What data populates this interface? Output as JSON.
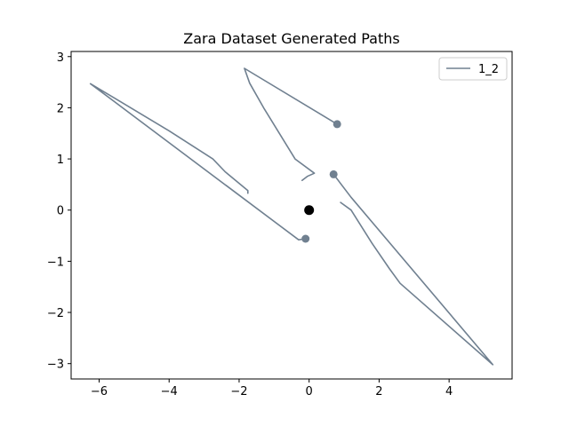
{
  "chart_data": {
    "type": "line",
    "title": "Zara Dataset Generated Paths",
    "xlabel": "",
    "ylabel": "",
    "xlim": [
      -6.8,
      5.8
    ],
    "ylim": [
      -3.3,
      3.1
    ],
    "xticks": [
      -6,
      -4,
      -2,
      0,
      2,
      4
    ],
    "yticks": [
      -3,
      -2,
      -1,
      0,
      1,
      2,
      3
    ],
    "xtick_labels": [
      "−6",
      "−4",
      "−2",
      "0",
      "2",
      "4"
    ],
    "ytick_labels": [
      "−3",
      "−2",
      "−1",
      "0",
      "1",
      "2",
      "3"
    ],
    "grid": false,
    "legend": {
      "placement": "top-right",
      "entries": [
        "1_2"
      ]
    },
    "series_color": "#708090",
    "origin_color": "#000000",
    "origin_point": [
      0,
      0
    ],
    "series": [
      {
        "name": "1_2",
        "paths": [
          [
            [
              -0.1,
              -0.56
            ],
            [
              -0.3,
              -0.58
            ],
            [
              -6.25,
              2.47
            ],
            [
              -4.0,
              1.55
            ],
            [
              -2.75,
              1.0
            ],
            [
              -2.4,
              0.75
            ],
            [
              -1.75,
              0.38
            ],
            [
              -1.75,
              0.33
            ]
          ],
          [
            [
              0.8,
              1.68
            ],
            [
              -1.85,
              2.77
            ],
            [
              -1.7,
              2.48
            ],
            [
              -1.3,
              2.0
            ],
            [
              -0.4,
              1.0
            ],
            [
              0.15,
              0.72
            ],
            [
              -0.05,
              0.66
            ],
            [
              -0.2,
              0.58
            ]
          ],
          [
            [
              0.7,
              0.7
            ],
            [
              1.2,
              0.25
            ],
            [
              5.25,
              -3.02
            ],
            [
              2.6,
              -1.43
            ],
            [
              2.3,
              -1.15
            ],
            [
              1.8,
              -0.65
            ],
            [
              1.2,
              0.0
            ],
            [
              0.9,
              0.15
            ]
          ]
        ],
        "endpoints": [
          [
            -0.1,
            -0.56
          ],
          [
            0.8,
            1.68
          ],
          [
            0.7,
            0.7
          ]
        ]
      }
    ]
  }
}
